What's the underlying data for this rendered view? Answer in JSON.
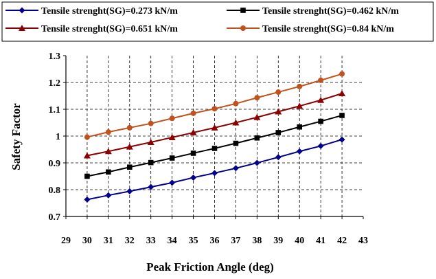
{
  "chart_data": {
    "type": "line",
    "title": "",
    "xlabel": "Peak Friction Angle (deg)",
    "ylabel": "Safety Factor",
    "xlim": [
      29,
      43
    ],
    "ylim": [
      0.7,
      1.3
    ],
    "x_ticks": [
      29,
      30,
      31,
      32,
      33,
      34,
      35,
      36,
      37,
      38,
      39,
      40,
      41,
      42,
      43
    ],
    "y_ticks": [
      0.7,
      0.8,
      0.9,
      1,
      1.1,
      1.2,
      1.3
    ],
    "y_tick_labels": [
      "0.7",
      "0.8",
      "0.9",
      "1",
      "1.1",
      "1.2",
      "1.3"
    ],
    "grid": "dashed",
    "legend_position": "top",
    "x": [
      30,
      31,
      32,
      33,
      34,
      35,
      36,
      37,
      38,
      39,
      40,
      41,
      42
    ],
    "series": [
      {
        "name": "Tensile strenght(SG)=0.273 kN/m",
        "color": "#00008b",
        "marker": "diamond",
        "values": [
          0.763,
          0.779,
          0.794,
          0.81,
          0.826,
          0.845,
          0.862,
          0.88,
          0.9,
          0.921,
          0.943,
          0.963,
          0.987
        ]
      },
      {
        "name": "Tensile strenght(SG)=0.462 kN/m",
        "color": "#000000",
        "marker": "square",
        "values": [
          0.85,
          0.866,
          0.884,
          0.901,
          0.918,
          0.936,
          0.954,
          0.973,
          0.993,
          1.013,
          1.034,
          1.055,
          1.077
        ]
      },
      {
        "name": "Tensile strenght(SG)=0.651 kN/m",
        "color": "#8b0000",
        "marker": "triangle",
        "values": [
          0.927,
          0.943,
          0.96,
          0.977,
          0.995,
          1.013,
          1.031,
          1.05,
          1.07,
          1.091,
          1.112,
          1.134,
          1.159
        ]
      },
      {
        "name": "Tensile strenght(SG)=0.84 kN/m",
        "color": "#c0521e",
        "marker": "circle",
        "values": [
          0.996,
          1.015,
          1.031,
          1.047,
          1.066,
          1.085,
          1.102,
          1.121,
          1.143,
          1.164,
          1.185,
          1.208,
          1.232
        ]
      }
    ]
  }
}
